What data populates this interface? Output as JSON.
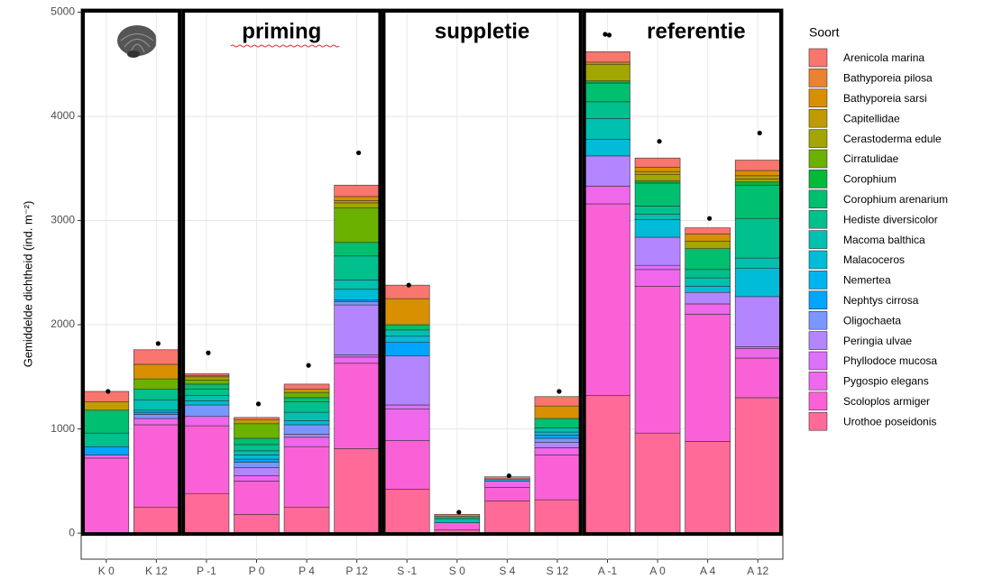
{
  "chart_data": {
    "type": "stacked_bar",
    "y_label": "Gemiddelde dichtheid (ind. m⁻²)",
    "annotations": [
      "priming",
      "suppletie",
      "referentie"
    ],
    "legend_title": "Soort",
    "categories": [
      "K 0",
      "K 12",
      "P -1",
      "P 0",
      "P 4",
      "P 12",
      "S -1",
      "S 0",
      "S 4",
      "S 12",
      "A -1",
      "A 0",
      "A 4",
      "A 12"
    ],
    "ylim": [
      -250,
      5030
    ],
    "yticks": [
      0,
      1000,
      2000,
      3000,
      4000,
      5000
    ],
    "grid": true,
    "series": [
      {
        "name": "Arenicola marina",
        "color": "#F8766D",
        "values": [
          100,
          140,
          20,
          20,
          50,
          110,
          130,
          20,
          20,
          90,
          100,
          90,
          60,
          100
        ]
      },
      {
        "name": "Bathyporeia pilosa",
        "color": "#EA8331",
        "values": [
          0,
          0,
          0,
          0,
          0,
          0,
          0,
          0,
          0,
          0,
          0,
          0,
          0,
          0
        ]
      },
      {
        "name": "Bathyporeia sarsi",
        "color": "#D89000",
        "values": [
          0,
          140,
          10,
          0,
          0,
          40,
          250,
          0,
          0,
          120,
          20,
          40,
          70,
          50
        ]
      },
      {
        "name": "Capitellidae",
        "color": "#C09B00",
        "values": [
          80,
          0,
          0,
          40,
          30,
          20,
          0,
          0,
          0,
          0,
          0,
          30,
          0,
          30
        ]
      },
      {
        "name": "Cerastoderma edule",
        "color": "#A3A500",
        "values": [
          0,
          0,
          30,
          0,
          0,
          50,
          0,
          0,
          0,
          0,
          160,
          60,
          70,
          30
        ]
      },
      {
        "name": "Cirratulidae",
        "color": "#6BB100",
        "values": [
          0,
          100,
          40,
          140,
          50,
          330,
          0,
          0,
          0,
          0,
          0,
          0,
          0,
          0
        ]
      },
      {
        "name": "Corophium",
        "color": "#00BA38",
        "values": [
          0,
          0,
          0,
          0,
          0,
          0,
          0,
          0,
          0,
          0,
          20,
          20,
          0,
          30
        ]
      },
      {
        "name": "Corophium arenarium",
        "color": "#00BF6F",
        "values": [
          220,
          0,
          50,
          60,
          40,
          130,
          50,
          20,
          0,
          90,
          180,
          220,
          200,
          320
        ]
      },
      {
        "name": "Hediste diversicolor",
        "color": "#00C08D",
        "values": [
          130,
          100,
          60,
          60,
          100,
          230,
          0,
          0,
          0,
          0,
          160,
          80,
          80,
          380
        ]
      },
      {
        "name": "Macoma balthica",
        "color": "#00C0AF",
        "values": [
          0,
          100,
          50,
          40,
          80,
          90,
          60,
          40,
          0,
          40,
          200,
          50,
          80,
          100
        ]
      },
      {
        "name": "Malacoceros",
        "color": "#00BCD8",
        "values": [
          0,
          20,
          40,
          40,
          40,
          100,
          60,
          0,
          20,
          30,
          160,
          170,
          60,
          270
        ]
      },
      {
        "name": "Nemertea",
        "color": "#00B4F0",
        "values": [
          0,
          0,
          0,
          0,
          0,
          0,
          0,
          0,
          0,
          0,
          0,
          0,
          0,
          0
        ]
      },
      {
        "name": "Nephtys cirrosa",
        "color": "#00A5FF",
        "values": [
          80,
          20,
          0,
          30,
          0,
          20,
          130,
          0,
          0,
          30,
          0,
          0,
          0,
          0
        ]
      },
      {
        "name": "Oligochaeta",
        "color": "#7997FF",
        "values": [
          0,
          40,
          110,
          50,
          90,
          30,
          0,
          0,
          0,
          40,
          0,
          0,
          0,
          0
        ]
      },
      {
        "name": "Peringia ulvae",
        "color": "#B385FF",
        "values": [
          0,
          0,
          0,
          80,
          30,
          480,
          470,
          0,
          0,
          50,
          290,
          270,
          110,
          480
        ]
      },
      {
        "name": "Phyllodoce mucosa",
        "color": "#DC71FA",
        "values": [
          0,
          0,
          0,
          0,
          0,
          20,
          40,
          0,
          0,
          0,
          0,
          40,
          0,
          20
        ]
      },
      {
        "name": "Pygospio elegans",
        "color": "#EF67EB",
        "values": [
          30,
          60,
          90,
          50,
          90,
          60,
          300,
          0,
          60,
          70,
          170,
          160,
          100,
          90
        ]
      },
      {
        "name": "Scoloplos armiger",
        "color": "#FB61D7",
        "values": [
          720,
          790,
          650,
          320,
          580,
          820,
          470,
          70,
          130,
          430,
          1840,
          1410,
          1220,
          380
        ]
      },
      {
        "name": "Urothoe poseidonis",
        "color": "#FF6A98",
        "values": [
          0,
          250,
          380,
          180,
          250,
          810,
          420,
          30,
          310,
          320,
          1320,
          960,
          880,
          1300
        ]
      }
    ],
    "points": {
      "color": "#000000",
      "values": [
        1360,
        1820,
        1730,
        1240,
        1610,
        3650,
        2380,
        200,
        550,
        1360,
        4780,
        3760,
        3020,
        3840
      ]
    }
  }
}
